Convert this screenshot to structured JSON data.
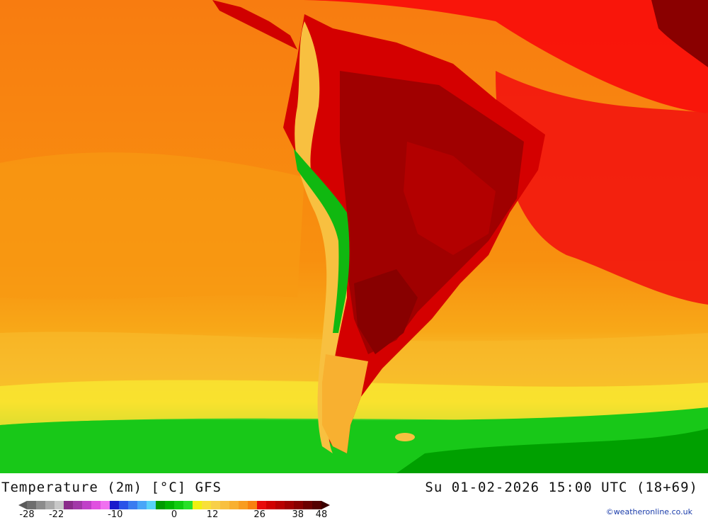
{
  "map": {
    "title": "Temperature (2m) [°C] GFS",
    "timestamp": "Su 01-02-2026 15:00 UTC (18+69)",
    "credit": "©weatheronline.co.uk"
  },
  "legend": {
    "unit": "°C",
    "colors": [
      "#6e6e6e",
      "#8c8c8c",
      "#aaaaaa",
      "#c8c8c8",
      "#8a2c8a",
      "#a238a8",
      "#c040c8",
      "#e050e0",
      "#f070f0",
      "#1a1acc",
      "#2a52e8",
      "#3a7cf0",
      "#48a6f8",
      "#58d2f8",
      "#009a00",
      "#00b400",
      "#10cc10",
      "#28e028",
      "#f0f010",
      "#f8e038",
      "#f8d048",
      "#f8c040",
      "#f8b030",
      "#f89c20",
      "#f88010",
      "#e80a0a",
      "#d00000",
      "#b80000",
      "#a00000",
      "#880000",
      "#6c0000",
      "#540000"
    ],
    "ticks": [
      {
        "label": "-28",
        "pos": 0.0
      },
      {
        "label": "-22",
        "pos": 0.1
      },
      {
        "label": "-10",
        "pos": 0.3
      },
      {
        "label": "0",
        "pos": 0.5
      },
      {
        "label": "12",
        "pos": 0.63
      },
      {
        "label": "26",
        "pos": 0.79
      },
      {
        "label": "38",
        "pos": 0.92
      },
      {
        "label": "48",
        "pos": 1.0
      }
    ]
  }
}
